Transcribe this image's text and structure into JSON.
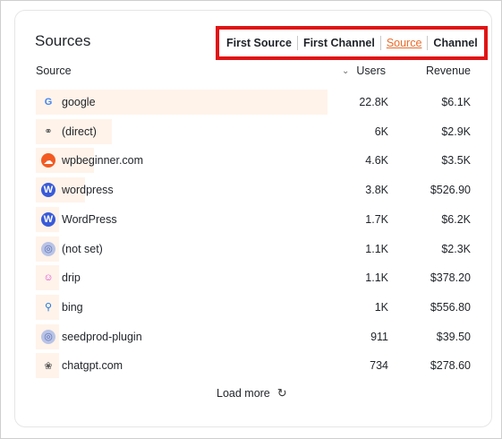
{
  "card": {
    "title": "Sources",
    "tabs": [
      {
        "label": "First Source",
        "active": false
      },
      {
        "label": "First Channel",
        "active": false
      },
      {
        "label": "Source",
        "active": true
      },
      {
        "label": "Channel",
        "active": false
      }
    ],
    "columns": {
      "source": "Source",
      "users": "Users",
      "revenue": "Revenue",
      "users_sort_icon": "chevron-down-icon"
    },
    "rows": [
      {
        "icon": "google-icon",
        "label": "google",
        "users": "22.8K",
        "revenue": "$6.1K",
        "bar_share": 1.0
      },
      {
        "icon": "link-icon",
        "label": "(direct)",
        "users": "6K",
        "revenue": "$2.9K",
        "bar_share": 0.26
      },
      {
        "icon": "wpbeginner-icon",
        "label": "wpbeginner.com",
        "users": "4.6K",
        "revenue": "$3.5K",
        "bar_share": 0.2
      },
      {
        "icon": "wordpress-icon",
        "label": "wordpress",
        "users": "3.8K",
        "revenue": "$526.90",
        "bar_share": 0.17
      },
      {
        "icon": "wordpress-icon",
        "label": "WordPress",
        "users": "1.7K",
        "revenue": "$6.2K",
        "bar_share": 0.075
      },
      {
        "icon": "globe-icon",
        "label": "(not set)",
        "users": "1.1K",
        "revenue": "$2.3K",
        "bar_share": 0.05
      },
      {
        "icon": "drip-icon",
        "label": "drip",
        "users": "1.1K",
        "revenue": "$378.20",
        "bar_share": 0.05
      },
      {
        "icon": "search-icon",
        "label": "bing",
        "users": "1K",
        "revenue": "$556.80",
        "bar_share": 0.045
      },
      {
        "icon": "globe-icon",
        "label": "seedprod-plugin",
        "users": "911",
        "revenue": "$39.50",
        "bar_share": 0.04
      },
      {
        "icon": "chatgpt-icon",
        "label": "chatgpt.com",
        "users": "734",
        "revenue": "$278.60",
        "bar_share": 0.032
      }
    ],
    "load_more": "Load more"
  },
  "colors": {
    "accent": "#e86b2a",
    "bar": "#fff3ea",
    "highlight_box": "#e11414"
  }
}
